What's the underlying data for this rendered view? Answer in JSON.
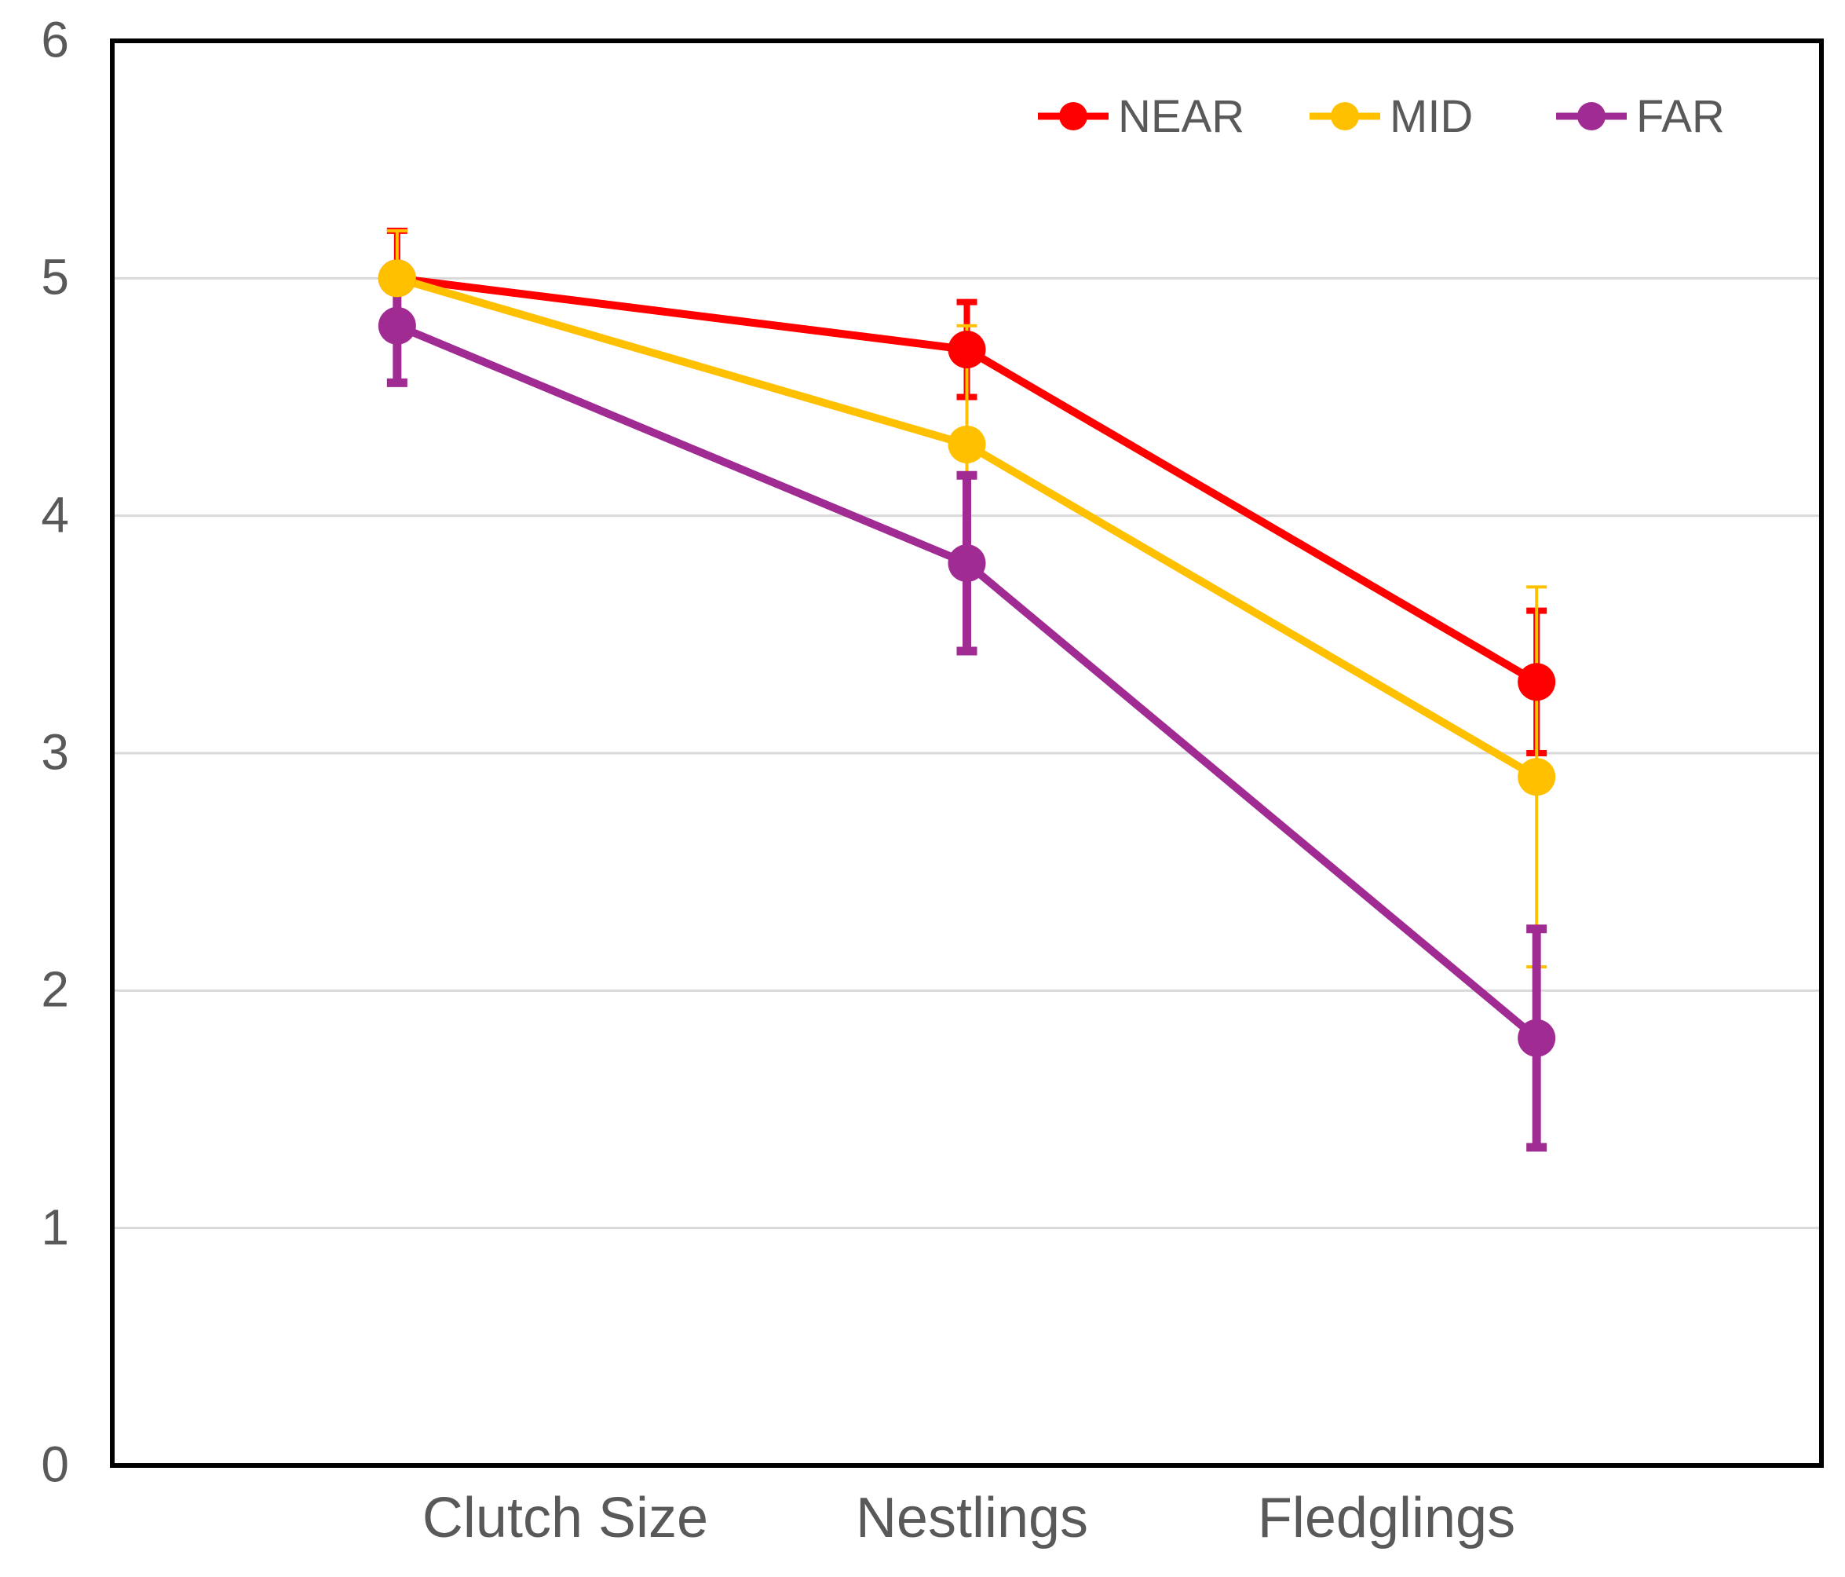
{
  "chart_data": {
    "type": "line",
    "categories": [
      "Clutch Size",
      "Nestlings",
      "Fledglings"
    ],
    "series": [
      {
        "name": "NEAR",
        "color": "#FF0000",
        "values": [
          5.0,
          4.7,
          3.3
        ],
        "error_plus": [
          0.2,
          0.2,
          0.3
        ],
        "error_minus": [
          0.2,
          0.2,
          0.3
        ]
      },
      {
        "name": "MID",
        "color": "#FFC000",
        "values": [
          5.0,
          4.3,
          2.9
        ],
        "error_plus": [
          0.2,
          0.5,
          0.8
        ],
        "error_minus": [
          0.2,
          0.5,
          0.8
        ]
      },
      {
        "name": "FAR",
        "color": "#A02B93",
        "values": [
          4.8,
          3.8,
          1.8
        ],
        "error_plus": [
          0.24,
          0.37,
          0.46
        ],
        "error_minus": [
          0.24,
          0.37,
          0.46
        ]
      }
    ],
    "title": "",
    "xlabel": "",
    "ylabel": "",
    "ylim": [
      0,
      6
    ],
    "y_ticks": [
      "0",
      "1",
      "2",
      "3",
      "4",
      "5",
      "6"
    ],
    "grid": "horizontal",
    "gridline_values": [
      1,
      2,
      3,
      4,
      5
    ],
    "legend_position": "top-right-inside",
    "error_bars": "vertical with caps"
  },
  "style": {
    "background": "#FFFFFF",
    "grid_color": "#D9D9D9",
    "frame_color": "#000000",
    "text_color": "#595959"
  }
}
